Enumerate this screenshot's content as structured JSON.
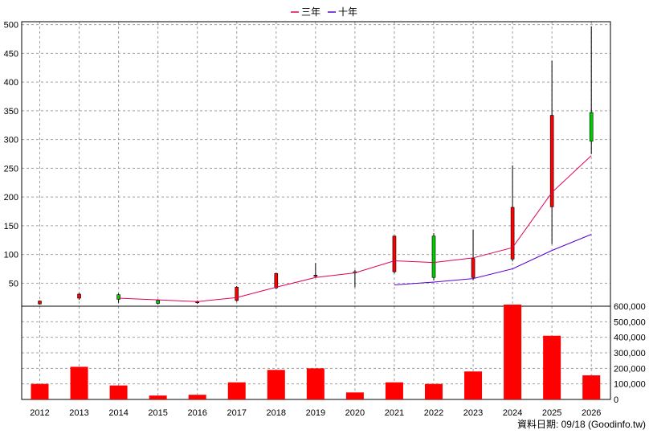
{
  "chart_data": {
    "type": "candlestick",
    "categories": [
      "2012",
      "2013",
      "2014",
      "2015",
      "2016",
      "2017",
      "2018",
      "2019",
      "2020",
      "2021",
      "2022",
      "2023",
      "2024",
      "2025",
      "2026"
    ],
    "price_axis": {
      "ylim": [
        10,
        505
      ],
      "ticks": [
        50,
        100,
        150,
        200,
        250,
        300,
        350,
        400,
        450,
        500
      ],
      "grid": true
    },
    "volume_axis": {
      "ylim": [
        0,
        600000
      ],
      "ticks": [
        0,
        100000,
        200000,
        300000,
        400000,
        500000,
        600000
      ],
      "tick_labels": [
        "0",
        "100,000",
        "200,000",
        "300,000",
        "400,000",
        "500,000",
        "600,000"
      ],
      "grid": true
    },
    "candles": [
      {
        "x": "2012",
        "open": 19,
        "high": 20,
        "low": 13,
        "close": 14
      },
      {
        "x": "2013",
        "open": 31,
        "high": 33,
        "low": 21,
        "close": 24
      },
      {
        "x": "2014",
        "open": 22,
        "high": 32,
        "low": 16,
        "close": 30
      },
      {
        "x": "2015",
        "open": 15,
        "high": 22,
        "low": 13,
        "close": 20
      },
      {
        "x": "2016",
        "open": 18,
        "high": 20,
        "low": 14,
        "close": 16
      },
      {
        "x": "2017",
        "open": 43,
        "high": 45,
        "low": 18,
        "close": 20
      },
      {
        "x": "2018",
        "open": 67,
        "high": 68,
        "low": 40,
        "close": 42
      },
      {
        "x": "2019",
        "open": 64,
        "high": 85,
        "low": 60,
        "close": 62
      },
      {
        "x": "2020",
        "open": 68,
        "high": 73,
        "low": 43,
        "close": 70
      },
      {
        "x": "2021",
        "open": 132,
        "high": 133,
        "low": 67,
        "close": 70
      },
      {
        "x": "2022",
        "open": 60,
        "high": 137,
        "low": 55,
        "close": 132
      },
      {
        "x": "2023",
        "open": 93,
        "high": 143,
        "low": 55,
        "close": 60
      },
      {
        "x": "2024",
        "open": 182,
        "high": 255,
        "low": 88,
        "close": 92
      },
      {
        "x": "2025",
        "open": 342,
        "high": 437,
        "low": 118,
        "close": 183
      },
      {
        "x": "2026",
        "open": 297,
        "high": 497,
        "low": 275,
        "close": 347
      }
    ],
    "series": [
      {
        "name": "三年",
        "color": "#e0005a",
        "x": [
          "2014",
          "2015",
          "2016",
          "2017",
          "2018",
          "2019",
          "2020",
          "2021",
          "2022",
          "2023",
          "2024",
          "2025",
          "2026"
        ],
        "values": [
          24,
          21,
          18,
          25,
          43,
          60,
          68,
          89,
          86,
          94,
          112,
          208,
          272
        ]
      },
      {
        "name": "十年",
        "color": "#5a00d0",
        "x": [
          "2021",
          "2022",
          "2023",
          "2024",
          "2025",
          "2026"
        ],
        "values": [
          47,
          52,
          58,
          75,
          107,
          135
        ]
      }
    ],
    "volume": [
      100000,
      210000,
      90000,
      25000,
      30000,
      110000,
      190000,
      200000,
      45000,
      110000,
      100000,
      180000,
      620000,
      410000,
      155000
    ],
    "colors": {
      "up": "#00cc00",
      "down": "#ff0000",
      "volume": "#ff0000",
      "wick": "#000000",
      "grid": "#a0a0a0"
    }
  },
  "footer": {
    "source": "資料日期: 09/18 (Goodinfo.tw)"
  }
}
